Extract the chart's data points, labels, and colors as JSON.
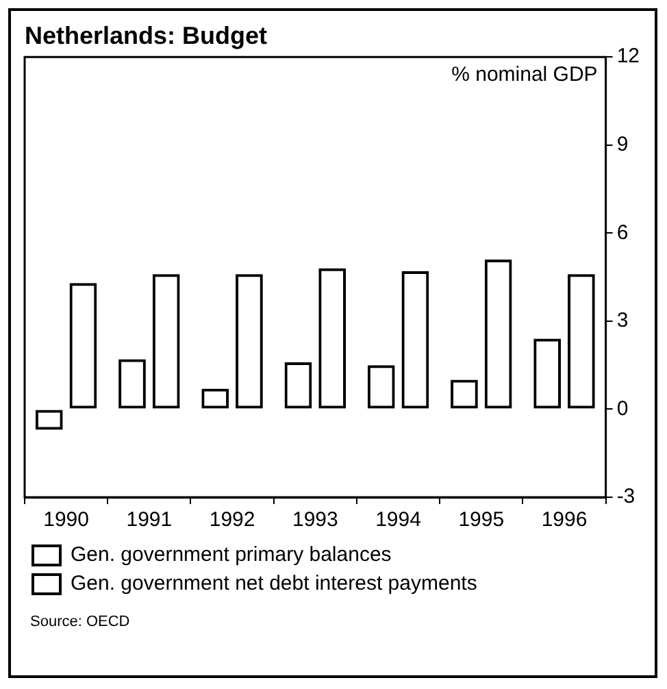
{
  "chart_data": {
    "type": "bar",
    "title": "Netherlands: Budget",
    "categories": [
      "1990",
      "1991",
      "1992",
      "1993",
      "1994",
      "1995",
      "1996"
    ],
    "series": [
      {
        "name": "Gen. government primary balances",
        "color": "#000000",
        "values": [
          -0.7,
          1.7,
          0.7,
          1.6,
          1.5,
          1.0,
          2.4
        ]
      },
      {
        "name": "Gen. government net debt interest payments",
        "color": "#000000",
        "values": [
          4.3,
          4.6,
          4.6,
          4.8,
          4.7,
          5.1,
          4.6
        ]
      }
    ],
    "ylim": [
      -3,
      12
    ],
    "yticks": [
      -3,
      0,
      3,
      6,
      9,
      12
    ],
    "grid": false,
    "legend": "bottom",
    "annotations": [
      "% nominal GDP",
      "Source: OECD"
    ]
  }
}
